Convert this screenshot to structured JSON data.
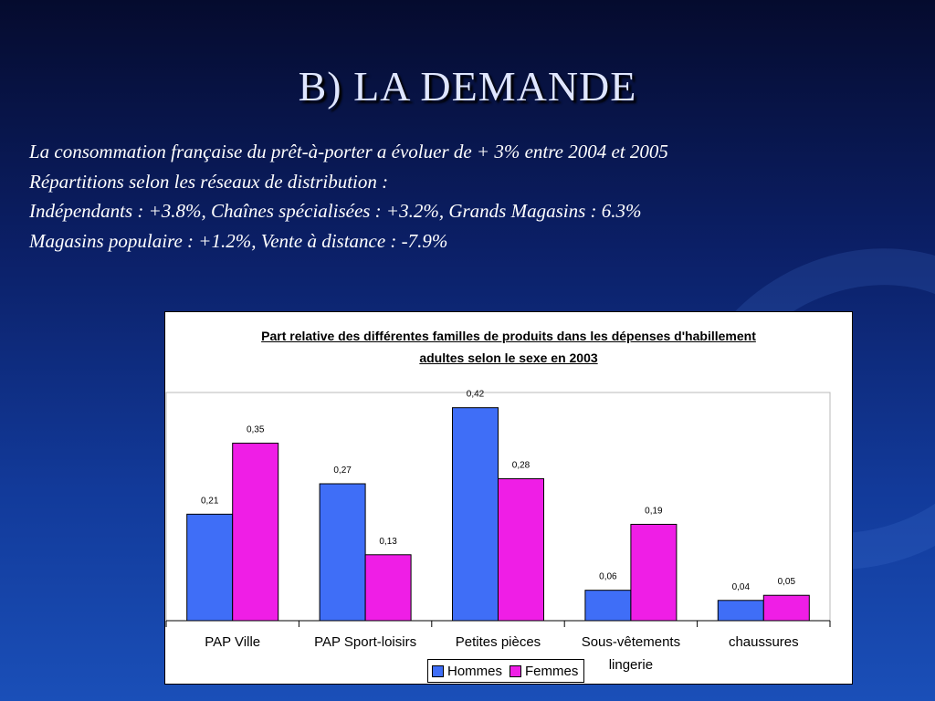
{
  "slide": {
    "title": "B) LA DEMANDE",
    "lines": [
      "La consommation française du prêt-à-porter a évoluer de + 3% entre 2004 et 2005",
      "Répartitions selon les réseaux de distribution :",
      "Indépendants : +3.8%, Chaînes spécialisées : +3.2%, Grands Magasins : 6.3%",
      "Magasins populaire : +1.2%, Vente à distance : -7.9%"
    ]
  },
  "colors": {
    "hommes": "#3f6ef7",
    "femmes": "#ef1ee6"
  },
  "chart_data": {
    "type": "bar",
    "title_line1": "Part relative des différentes familles de produits dans les dépenses d'habillement",
    "title_line2": "adultes selon le sexe en 2003",
    "categories": [
      "PAP Ville",
      "PAP Sport-loisirs",
      "Petites pièces",
      "Sous-vêtements lingerie",
      "chaussures"
    ],
    "category_lines": [
      [
        "PAP Ville"
      ],
      [
        "PAP Sport-loisirs"
      ],
      [
        "Petites pièces"
      ],
      [
        "Sous-vêtements",
        "lingerie"
      ],
      [
        "chaussures"
      ]
    ],
    "series": [
      {
        "name": "Hommes",
        "values": [
          0.21,
          0.27,
          0.42,
          0.06,
          0.04
        ],
        "labels": [
          "0,21",
          "0,27",
          "0,42",
          "0,06",
          "0,04"
        ]
      },
      {
        "name": "Femmes",
        "values": [
          0.35,
          0.13,
          0.28,
          0.19,
          0.05
        ],
        "labels": [
          "0,35",
          "0,13",
          "0,28",
          "0,19",
          "0,05"
        ]
      }
    ],
    "ylim": [
      0,
      0.45
    ],
    "legend_position": "bottom",
    "grid": false
  }
}
